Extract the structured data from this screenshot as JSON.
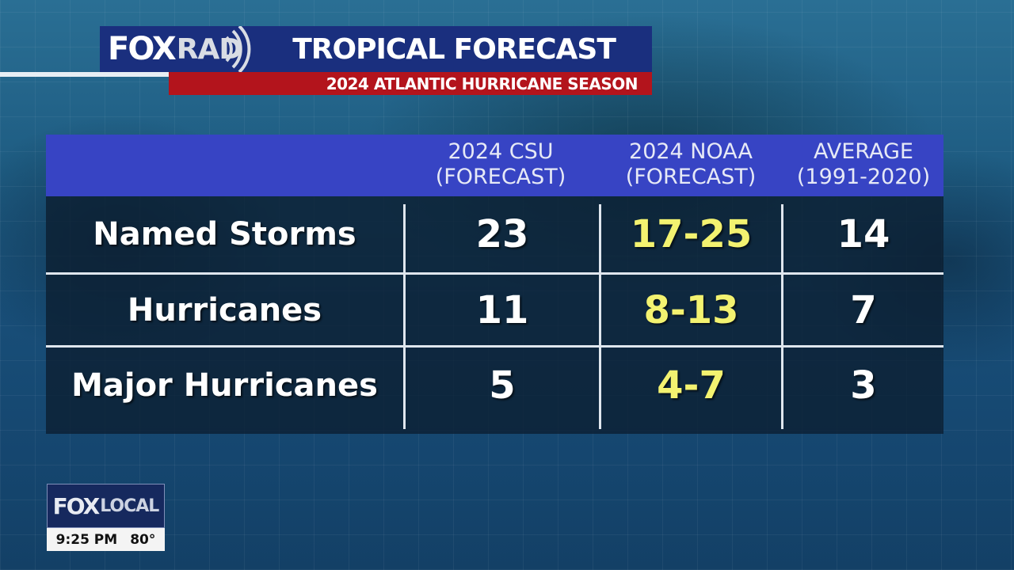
{
  "brand": {
    "fox": "FOX",
    "rad": "RAD"
  },
  "header": {
    "title": "TROPICAL FORECAST",
    "subtitle": "2024 ATLANTIC HURRICANE SEASON"
  },
  "table": {
    "columns": [
      {
        "line1": "2024 CSU",
        "line2": "(FORECAST)"
      },
      {
        "line1": "2024 NOAA",
        "line2": "(FORECAST)"
      },
      {
        "line1": "AVERAGE",
        "line2": "(1991-2020)"
      }
    ],
    "rows": [
      {
        "label": "Named Storms",
        "csu": "23",
        "noaa": "17-25",
        "avg": "14"
      },
      {
        "label": "Hurricanes",
        "csu": "11",
        "noaa": "8-13",
        "avg": "7"
      },
      {
        "label": "Major Hurricanes",
        "csu": "5",
        "noaa": "4-7",
        "avg": "3"
      }
    ],
    "highlight_color": "#f3f270",
    "header_color": "#3744c4"
  },
  "bug": {
    "fox": "FOX",
    "local": "LOCAL",
    "time": "9:25 PM",
    "temp": "80°"
  },
  "colors": {
    "header_bar": "#1a2f7e",
    "subtitle_bar": "#b3141c"
  }
}
